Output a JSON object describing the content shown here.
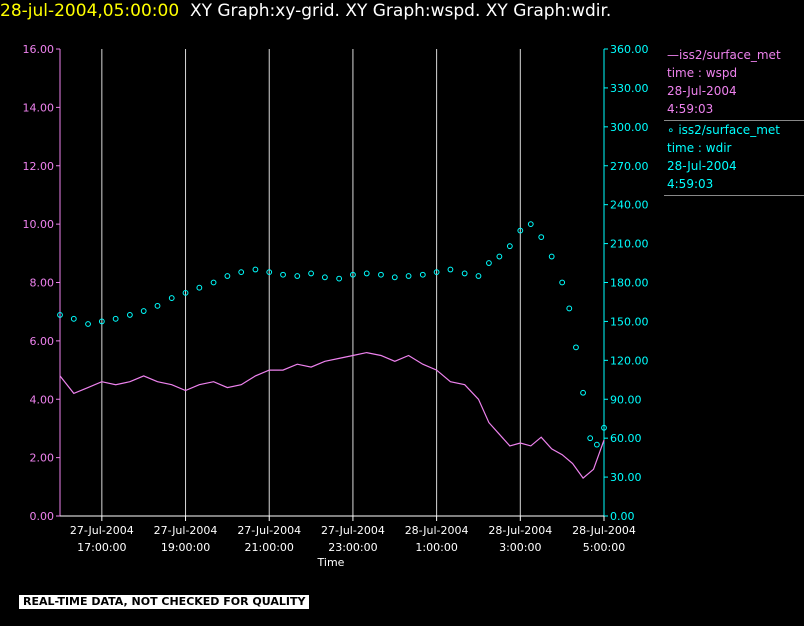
{
  "header": {
    "timestamp": "28-jul-2004,05:00:00",
    "title": "XY Graph:xy-grid.  XY Graph:wspd.  XY Graph:wdir."
  },
  "legend": {
    "wspd": {
      "line1": "—iss2/surface_met",
      "line2": "time : wspd",
      "line3": "28-Jul-2004",
      "line4": "4:59:03"
    },
    "wdir": {
      "line1": "∘ iss2/surface_met",
      "line2": "time : wdir",
      "line3": "28-Jul-2004",
      "line4": "4:59:03"
    }
  },
  "disclaimer": "REAL-TIME DATA, NOT CHECKED FOR QUALITY",
  "colors": {
    "wspd": "#ee82ee",
    "wdir": "#00ffff",
    "grid": "#ffffff",
    "timestamp": "#ffff00"
  },
  "chart_data": {
    "type": "line",
    "xlabel": "Time",
    "x_range": [
      "27-Jul-2004 16:00:00",
      "28-Jul-2004 05:00:00"
    ],
    "x_ticks": [
      {
        "date": "27-Jul-2004",
        "time": "17:00:00",
        "hour": 17
      },
      {
        "date": "27-Jul-2004",
        "time": "19:00:00",
        "hour": 19
      },
      {
        "date": "27-Jul-2004",
        "time": "21:00:00",
        "hour": 21
      },
      {
        "date": "27-Jul-2004",
        "time": "23:00:00",
        "hour": 23
      },
      {
        "date": "28-Jul-2004",
        "time": "1:00:00",
        "hour": 25
      },
      {
        "date": "28-Jul-2004",
        "time": "3:00:00",
        "hour": 27
      },
      {
        "date": "28-Jul-2004",
        "time": "5:00:00",
        "hour": 29
      }
    ],
    "y_left": {
      "range": [
        0,
        16
      ],
      "ticks": [
        "0.00",
        "2.00",
        "4.00",
        "6.00",
        "8.00",
        "10.00",
        "12.00",
        "14.00",
        "16.00"
      ]
    },
    "y_right": {
      "range": [
        0,
        360
      ],
      "ticks": [
        "0.00",
        "30.00",
        "60.00",
        "90.00",
        "120.00",
        "150.00",
        "180.00",
        "210.00",
        "240.00",
        "270.00",
        "300.00",
        "330.00",
        "360.00"
      ]
    },
    "grid": "vertical",
    "legend_position": "right",
    "series": [
      {
        "key": "wspd",
        "axis": "left",
        "style": "line",
        "x": [
          16.0,
          16.33,
          16.67,
          17.0,
          17.33,
          17.67,
          18.0,
          18.33,
          18.67,
          19.0,
          19.33,
          19.67,
          20.0,
          20.33,
          20.67,
          21.0,
          21.33,
          21.67,
          22.0,
          22.33,
          22.67,
          23.0,
          23.33,
          23.67,
          24.0,
          24.33,
          24.67,
          25.0,
          25.33,
          25.67,
          26.0,
          26.25,
          26.5,
          26.75,
          27.0,
          27.25,
          27.5,
          27.75,
          28.0,
          28.25,
          28.5,
          28.75,
          29.0
        ],
        "y": [
          4.8,
          4.2,
          4.4,
          4.6,
          4.5,
          4.6,
          4.8,
          4.6,
          4.5,
          4.3,
          4.5,
          4.6,
          4.4,
          4.5,
          4.8,
          5.0,
          5.0,
          5.2,
          5.1,
          5.3,
          5.4,
          5.5,
          5.6,
          5.5,
          5.3,
          5.5,
          5.2,
          5.0,
          4.6,
          4.5,
          4.0,
          3.2,
          2.8,
          2.4,
          2.5,
          2.4,
          2.7,
          2.3,
          2.1,
          1.8,
          1.3,
          1.6,
          2.6
        ]
      },
      {
        "key": "wdir",
        "axis": "right",
        "style": "scatter",
        "x": [
          16.0,
          16.33,
          16.67,
          17.0,
          17.33,
          17.67,
          18.0,
          18.33,
          18.67,
          19.0,
          19.33,
          19.67,
          20.0,
          20.33,
          20.67,
          21.0,
          21.33,
          21.67,
          22.0,
          22.33,
          22.67,
          23.0,
          23.33,
          23.67,
          24.0,
          24.33,
          24.67,
          25.0,
          25.33,
          25.67,
          26.0,
          26.25,
          26.5,
          26.75,
          27.0,
          27.25,
          27.5,
          27.75,
          28.0,
          28.17,
          28.33,
          28.5,
          28.67,
          28.83,
          29.0
        ],
        "y": [
          155,
          152,
          148,
          150,
          152,
          155,
          158,
          162,
          168,
          172,
          176,
          180,
          185,
          188,
          190,
          188,
          186,
          185,
          187,
          184,
          183,
          186,
          187,
          186,
          184,
          185,
          186,
          188,
          190,
          187,
          185,
          195,
          200,
          208,
          220,
          225,
          215,
          200,
          180,
          160,
          130,
          95,
          60,
          55,
          68
        ]
      }
    ]
  }
}
